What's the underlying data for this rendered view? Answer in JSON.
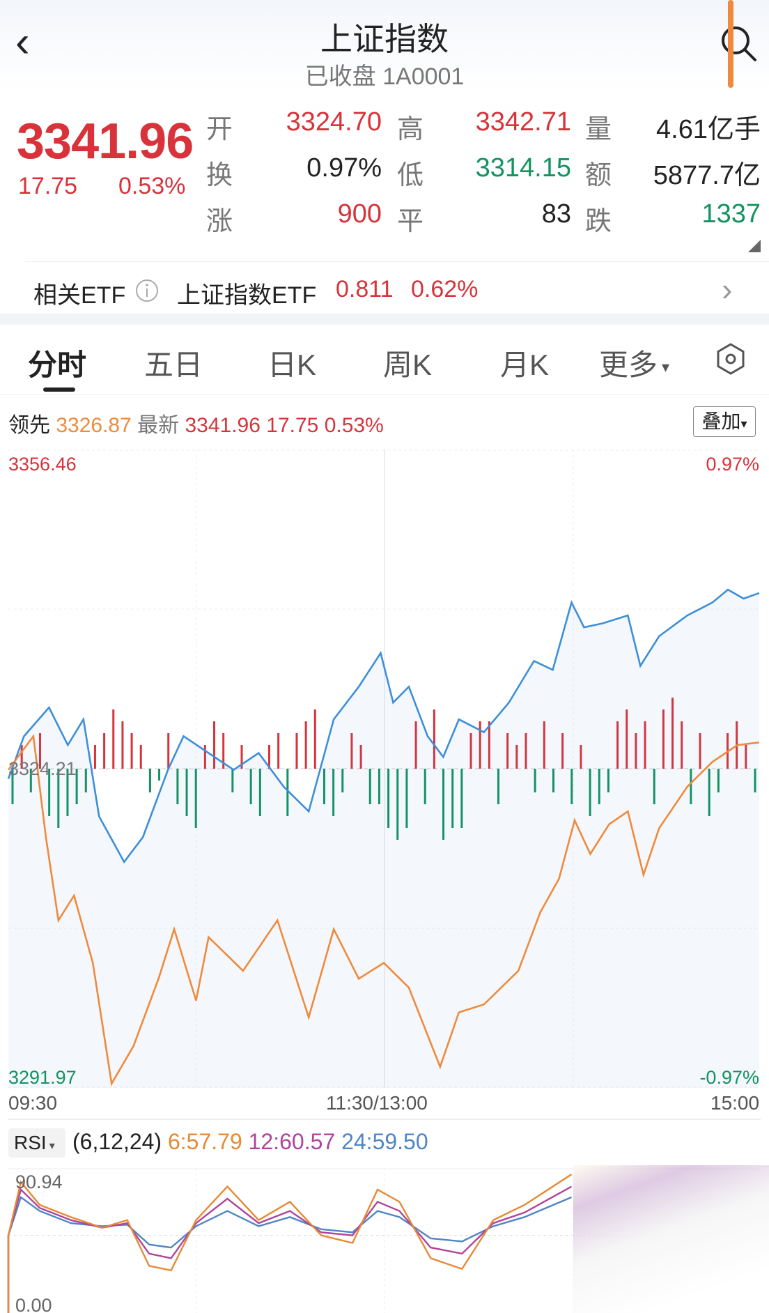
{
  "header": {
    "title": "上证指数",
    "subtitle": "已收盘 1A0001",
    "back_icon": "chevron-left-icon",
    "search_icon": "search-icon"
  },
  "quote": {
    "price": "3341.96",
    "change": "17.75",
    "change_pct": "0.53%",
    "stats": [
      {
        "label": "开",
        "value": "3324.70",
        "color": "red"
      },
      {
        "label": "高",
        "value": "3342.71",
        "color": "red"
      },
      {
        "label": "量",
        "value": "4.61亿手",
        "color": "dark"
      },
      {
        "label": "换",
        "value": "0.97%",
        "color": "dark"
      },
      {
        "label": "低",
        "value": "3314.15",
        "color": "green"
      },
      {
        "label": "额",
        "value": "5877.7亿",
        "color": "dark"
      },
      {
        "label": "涨",
        "value": "900",
        "color": "red"
      },
      {
        "label": "平",
        "value": "83",
        "color": "dark"
      },
      {
        "label": "跌",
        "value": "1337",
        "color": "green"
      }
    ]
  },
  "etf": {
    "label": "相关ETF",
    "name": "上证指数ETF",
    "price": "0.811",
    "pct": "0.62%"
  },
  "tabs": [
    "分时",
    "五日",
    "日K",
    "周K",
    "月K",
    "更多"
  ],
  "info": {
    "lead_label": "领先",
    "lead_value": "3326.87",
    "latest_label": "最新",
    "latest_value": "3341.96",
    "change": "17.75",
    "pct": "0.53%",
    "overlay_button": "叠加"
  },
  "colors": {
    "up": "#d8333a",
    "down": "#13935f",
    "index_line": "#3d8fd8",
    "lead_line": "#ef8a3c"
  },
  "chart_data": [
    {
      "type": "line",
      "ylim": [
        3291.97,
        3356.46
      ],
      "y_ticks": {
        "max": "3356.46",
        "mid": "3324.21",
        "min": "3291.97"
      },
      "pct_ticks": {
        "max": "0.97%",
        "min": "-0.97%"
      },
      "x_ticks": [
        "09:30",
        "11:30/13:00",
        "15:00"
      ],
      "series": [
        {
          "name": "最新",
          "color": "#3d8fd8",
          "x": [
            "09:30",
            "09:35",
            "09:43",
            "09:49",
            "09:54",
            "09:59",
            "10:07",
            "10:13",
            "10:21",
            "10:26",
            "10:34",
            "10:42",
            "10:50",
            "10:58",
            "11:06",
            "11:14",
            "11:22",
            "11:29",
            "13:03",
            "13:08",
            "13:14",
            "13:19",
            "13:24",
            "13:32",
            "13:40",
            "13:48",
            "13:54",
            "14:00",
            "14:04",
            "14:10",
            "14:18",
            "14:22",
            "14:28",
            "14:37",
            "14:45",
            "14:50",
            "14:55",
            "15:00"
          ],
          "y": [
            3323.2,
            3327.5,
            3330.4,
            3326.6,
            3329.2,
            3319.4,
            3314.8,
            3317.3,
            3324.1,
            3327.5,
            3325.8,
            3324.1,
            3325.8,
            3322.4,
            3319.9,
            3329.2,
            3332.5,
            3335.9,
            3330.9,
            3332.5,
            3327.5,
            3325.4,
            3329.2,
            3327.9,
            3330.9,
            3335.1,
            3334.2,
            3341.0,
            3338.5,
            3338.9,
            3339.7,
            3334.6,
            3337.6,
            3339.7,
            3341.0,
            3342.3,
            3341.4,
            3341.96
          ]
        },
        {
          "name": "领先",
          "color": "#ef8a3c",
          "x": [
            "09:30",
            "09:38",
            "09:42",
            "09:46",
            "09:51",
            "09:57",
            "10:03",
            "10:10",
            "10:18",
            "10:23",
            "10:30",
            "10:34",
            "10:45",
            "10:56",
            "11:06",
            "11:14",
            "11:22",
            "11:30",
            "13:08",
            "13:18",
            "13:24",
            "13:32",
            "13:43",
            "13:50",
            "13:56",
            "14:01",
            "14:06",
            "14:12",
            "14:18",
            "14:23",
            "14:28",
            "14:37",
            "14:45",
            "14:53",
            "15:00"
          ],
          "y": [
            3324.1,
            3327.5,
            3317.3,
            3308.9,
            3311.4,
            3304.6,
            3292.4,
            3296.2,
            3303.0,
            3308.0,
            3300.8,
            3307.2,
            3303.8,
            3308.9,
            3299.1,
            3308.0,
            3303.0,
            3304.6,
            3302.1,
            3294.1,
            3299.6,
            3300.4,
            3303.8,
            3309.7,
            3313.1,
            3319.0,
            3315.6,
            3318.6,
            3319.9,
            3313.5,
            3318.2,
            3322.4,
            3324.9,
            3326.6,
            3326.87
          ]
        }
      ],
      "bars": [
        -3,
        2,
        -2,
        3,
        -4,
        -5,
        -4,
        -3,
        -2,
        2,
        3,
        5,
        4,
        3,
        2,
        -2,
        -1,
        3,
        -3,
        -4,
        -5,
        2,
        4,
        3,
        -2,
        2,
        -3,
        -4,
        2,
        3,
        -4,
        3,
        4,
        5,
        -3,
        -4,
        -2,
        3,
        2,
        -3,
        -3,
        -5,
        -6,
        -5,
        4,
        -3,
        5,
        -6,
        -5,
        -5,
        3,
        4,
        4,
        -3,
        3,
        2,
        3,
        -2,
        4,
        -2,
        3,
        -3,
        2,
        -4,
        -3,
        -2,
        4,
        5,
        3,
        4,
        -3,
        5,
        6,
        4,
        -3,
        3,
        -4,
        -2,
        3,
        4,
        2,
        -2
      ],
      "bar_colors": {
        "positive": "#d8333a",
        "negative": "#13935f"
      }
    },
    {
      "type": "line",
      "title": "RSI",
      "params": "(6,12,24)",
      "ylim": [
        0,
        90.94
      ],
      "y_ticks": {
        "max": "90.94",
        "min": "0.00"
      },
      "legend": [
        {
          "label": "6:57.79",
          "color": "#e58a35"
        },
        {
          "label": "12:60.57",
          "color": "#b0449a"
        },
        {
          "label": "24:59.50",
          "color": "#4f86c6"
        }
      ],
      "x": [
        "09:30",
        "09:34",
        "09:40",
        "09:50",
        "10:00",
        "10:08",
        "10:15",
        "10:22",
        "10:30",
        "10:40",
        "10:50",
        "11:00",
        "11:10",
        "11:20",
        "11:28",
        "13:05",
        "13:15",
        "13:25",
        "13:35",
        "13:45",
        "14:00"
      ],
      "series": [
        {
          "name": "6",
          "color": "#e58a35",
          "y": [
            50,
            85,
            70,
            62,
            55,
            60,
            30,
            27,
            60,
            82,
            60,
            72,
            50,
            45,
            80,
            72,
            35,
            28,
            60,
            70,
            90
          ]
        },
        {
          "name": "12",
          "color": "#b0449a",
          "y": [
            50,
            80,
            68,
            60,
            55,
            58,
            38,
            35,
            58,
            74,
            58,
            66,
            52,
            50,
            72,
            66,
            42,
            38,
            58,
            65,
            82
          ]
        },
        {
          "name": "24",
          "color": "#4f86c6",
          "y": [
            50,
            75,
            66,
            58,
            56,
            57,
            44,
            42,
            56,
            66,
            56,
            62,
            54,
            52,
            66,
            62,
            48,
            46,
            56,
            62,
            75
          ]
        }
      ]
    }
  ]
}
